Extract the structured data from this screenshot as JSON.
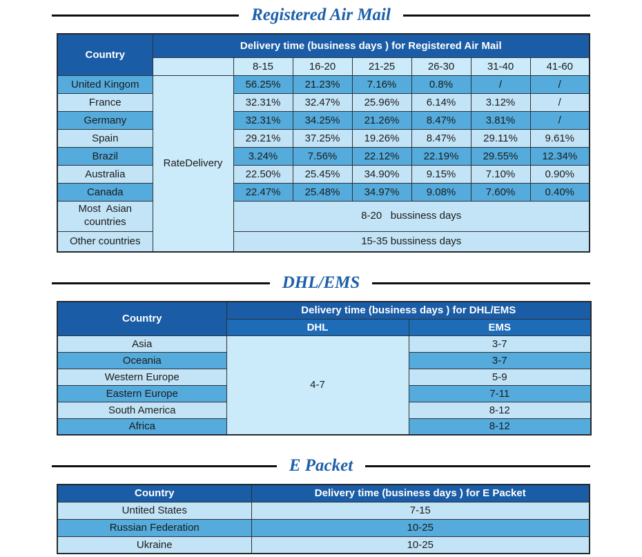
{
  "colors": {
    "header_blue": "#1a5ca6",
    "subheader_blue": "#1e6cb8",
    "row_medium_blue": "#54abdc",
    "row_light_blue": "#c3e4f6",
    "merged_pale_blue": "#cbeafa",
    "title_blue": "#1c5fa9",
    "border_dark": "#2c3238"
  },
  "sections": {
    "airmail": {
      "title": "Registered Air Mail",
      "header": {
        "country": "Country",
        "delivery": "Delivery time (business days ) for Registered Air Mail",
        "day_ranges": [
          "8-15",
          "16-20",
          "21-25",
          "26-30",
          "31-40",
          "41-60"
        ]
      },
      "rate_label": "RateDelivery",
      "rows": [
        {
          "country": "United Kingom",
          "values": [
            "56.25%",
            "21.23%",
            "7.16%",
            "0.8%",
            "/",
            "/"
          ]
        },
        {
          "country": "France",
          "values": [
            "32.31%",
            "32.47%",
            "25.96%",
            "6.14%",
            "3.12%",
            "/"
          ]
        },
        {
          "country": "Germany",
          "values": [
            "32.31%",
            "34.25%",
            "21.26%",
            "8.47%",
            "3.81%",
            "/"
          ]
        },
        {
          "country": "Spain",
          "values": [
            "29.21%",
            "37.25%",
            "19.26%",
            "8.47%",
            "29.11%",
            "9.61%"
          ]
        },
        {
          "country": "Brazil",
          "values": [
            "3.24%",
            "7.56%",
            "22.12%",
            "22.19%",
            "29.55%",
            "12.34%"
          ]
        },
        {
          "country": "Australia",
          "values": [
            "22.50%",
            "25.45%",
            "34.90%",
            "9.15%",
            "7.10%",
            "0.90%"
          ]
        },
        {
          "country": "Canada",
          "values": [
            "22.47%",
            "25.48%",
            "34.97%",
            "9.08%",
            "7.60%",
            "0.40%"
          ]
        }
      ],
      "span_rows": [
        {
          "country": "Most  Asian\ncountries",
          "value": "8-20   bussiness days"
        },
        {
          "country": "Other countries",
          "value": "15-35 bussiness days"
        }
      ]
    },
    "dhl": {
      "title": "DHL/EMS",
      "header": {
        "country": "Country",
        "delivery": "Delivery time (business days ) for DHL/EMS",
        "dhl": "DHL",
        "ems": "EMS"
      },
      "dhl_value": "4-7",
      "rows": [
        {
          "country": "Asia",
          "ems": "3-7"
        },
        {
          "country": "Oceania",
          "ems": "3-7"
        },
        {
          "country": "Western Europe",
          "ems": "5-9"
        },
        {
          "country": "Eastern Europe",
          "ems": "7-11"
        },
        {
          "country": "South America",
          "ems": "8-12"
        },
        {
          "country": "Africa",
          "ems": "8-12"
        }
      ]
    },
    "epacket": {
      "title": "E Packet",
      "header": {
        "country": "Country",
        "delivery": "Delivery time (business days ) for E Packet"
      },
      "rows": [
        {
          "country": "Untited States",
          "value": "7-15"
        },
        {
          "country": "Russian Federation",
          "value": "10-25"
        },
        {
          "country": "Ukraine",
          "value": "10-25"
        }
      ]
    }
  }
}
